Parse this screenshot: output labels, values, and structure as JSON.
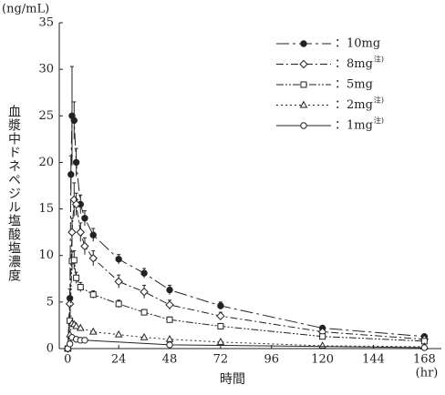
{
  "chart_data": {
    "type": "line",
    "y_unit": "(ng/mL)",
    "ylabel": "血漿中ドネペジル塩酸塩濃度",
    "xlabel": "時間",
    "x_unit": "(hr)",
    "xlim": [
      -4,
      176
    ],
    "ylim": [
      0,
      35
    ],
    "xticks": [
      0,
      24,
      48,
      72,
      96,
      120,
      144,
      168
    ],
    "yticks": [
      0,
      5,
      10,
      15,
      20,
      25,
      30,
      35
    ],
    "legend": "upper right",
    "series": [
      {
        "name": "：10mg",
        "note": null,
        "color": "#222",
        "marker": "circle-filled",
        "dash": "14 4 3 4",
        "x": [
          0,
          1,
          1.5,
          2,
          3,
          4,
          6,
          8,
          12,
          24,
          36,
          48,
          72,
          120,
          168
        ],
        "values": [
          0,
          5.4,
          18.7,
          25,
          24.5,
          20,
          15.5,
          14,
          12.2,
          9.6,
          8.1,
          6.3,
          4.6,
          2.2,
          1.3
        ],
        "errors": [
          null,
          1,
          2,
          5.3,
          2,
          1.5,
          1,
          0.8,
          0.7,
          0.5,
          0.5,
          0.5,
          0.4,
          0.2,
          0.2
        ]
      },
      {
        "name": "：8mg",
        "note": "注)",
        "color": "#222",
        "marker": "diamond",
        "dash": "8 3 2 3",
        "x": [
          0,
          1,
          2,
          3,
          4,
          6,
          8,
          12,
          24,
          36,
          48,
          72,
          120,
          168
        ],
        "values": [
          0,
          4.8,
          12.5,
          16,
          15.5,
          12.5,
          11,
          9.7,
          7.2,
          6.1,
          4.7,
          3.5,
          1.8,
          1.0
        ],
        "errors": [
          null,
          0.8,
          1.5,
          1.8,
          1.2,
          1,
          0.9,
          0.8,
          0.7,
          0.7,
          0.5,
          0.4,
          0.2,
          0.2
        ]
      },
      {
        "name": "：5mg",
        "note": null,
        "color": "#222",
        "marker": "square",
        "dash": "8 2 2 2 2 2",
        "x": [
          0,
          1,
          2,
          3,
          4,
          6,
          12,
          24,
          36,
          48,
          72,
          120,
          168
        ],
        "values": [
          0,
          3,
          9.4,
          9.5,
          7.6,
          6.6,
          5.8,
          4.8,
          3.9,
          3.1,
          2.4,
          1.3,
          0.8
        ],
        "errors": [
          null,
          0.5,
          1,
          1,
          0.6,
          0.5,
          0.4,
          0.4,
          0.3,
          0.3,
          0.3,
          0.2,
          0.1
        ]
      },
      {
        "name": "：2mg",
        "note": "注)",
        "color": "#222",
        "marker": "triangle",
        "dash": "2 3",
        "x": [
          0,
          1,
          2,
          3,
          4,
          6,
          12,
          24,
          36,
          48,
          72,
          120,
          168
        ],
        "values": [
          0,
          1.5,
          2.7,
          2.6,
          2.4,
          2.2,
          1.8,
          1.5,
          1.2,
          1.0,
          0.7,
          0.3,
          0.2
        ],
        "errors": [
          null,
          null,
          null,
          null,
          null,
          null,
          null,
          null,
          null,
          null,
          null,
          null,
          null
        ]
      },
      {
        "name": "：1mg",
        "note": "注)",
        "color": "#222",
        "marker": "circle",
        "dash": "none",
        "x": [
          0,
          1,
          2,
          4,
          6,
          8,
          48,
          168
        ],
        "values": [
          0,
          0.5,
          1.2,
          1.0,
          0.9,
          0.9,
          0.4,
          0.1
        ],
        "errors": [
          null,
          null,
          null,
          null,
          null,
          null,
          null,
          null
        ]
      }
    ]
  }
}
